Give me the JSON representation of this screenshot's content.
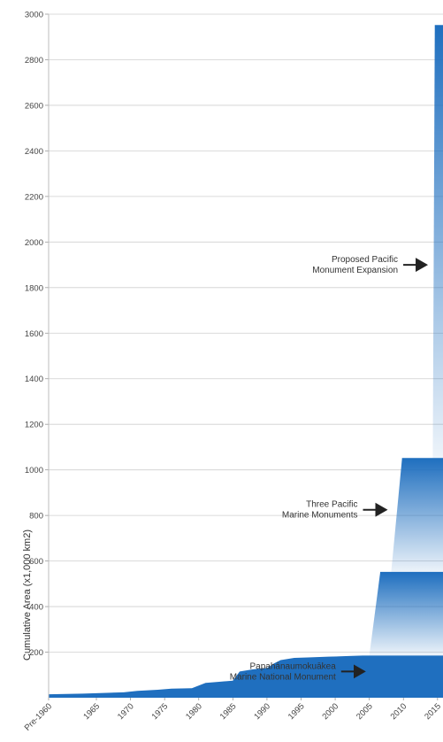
{
  "chart_data": {
    "type": "area",
    "ylabel": "Cumulative Area (x1,000 km2)",
    "ylim": [
      0,
      3000
    ],
    "yticks": [
      200,
      400,
      600,
      800,
      1000,
      1200,
      1400,
      1600,
      1800,
      2000,
      2200,
      2400,
      2600,
      2800,
      3000
    ],
    "xlim": [
      1958,
      2015
    ],
    "xticks": [
      {
        "label": "Pre-1960",
        "x": 1958
      },
      {
        "label": "1965",
        "x": 1965
      },
      {
        "label": "1970",
        "x": 1970
      },
      {
        "label": "1975",
        "x": 1975
      },
      {
        "label": "1980",
        "x": 1980
      },
      {
        "label": "1985",
        "x": 1985
      },
      {
        "label": "1990",
        "x": 1990
      },
      {
        "label": "1995",
        "x": 1995
      },
      {
        "label": "2000",
        "x": 2000
      },
      {
        "label": "2005",
        "x": 2005
      },
      {
        "label": "2010",
        "x": 2010
      },
      {
        "label": "2015",
        "x": 2015
      }
    ],
    "grid": true,
    "color": "#1f6fbf",
    "series": [
      {
        "x": [
          1958,
          1963,
          1967,
          1969,
          1971,
          1974,
          1976,
          1979,
          1981,
          1983,
          1985,
          1986,
          1988,
          1990,
          1991,
          1992,
          1994,
          1996,
          1999,
          2002,
          2004,
          2005
        ],
        "y": [
          15,
          18,
          22,
          24,
          30,
          35,
          40,
          42,
          65,
          70,
          75,
          115,
          125,
          130,
          150,
          165,
          175,
          177,
          180,
          183,
          185,
          185
        ]
      }
    ],
    "steps": [
      {
        "x_start": 2005.0,
        "x_end": 2006.6,
        "from": 185,
        "to": 550
      },
      {
        "x_start": 2008.2,
        "x_end": 2009.8,
        "from": 550,
        "to": 1050
      },
      {
        "x_start": 2014.3,
        "x_end": 2014.6,
        "from": 1050,
        "to": 2950
      }
    ],
    "final_x": 2015.8,
    "annotations": [
      {
        "lines": [
          "Proposed Pacific",
          "Monument Expansion"
        ],
        "x": 2013.6,
        "y": 1900
      },
      {
        "lines": [
          "Three Pacific",
          "Marine Monuments"
        ],
        "x": 2007.7,
        "y": 825
      },
      {
        "lines": [
          "Papahānaumokuākea",
          "Marine National Monument"
        ],
        "x": 2004.5,
        "y": 115
      }
    ]
  }
}
